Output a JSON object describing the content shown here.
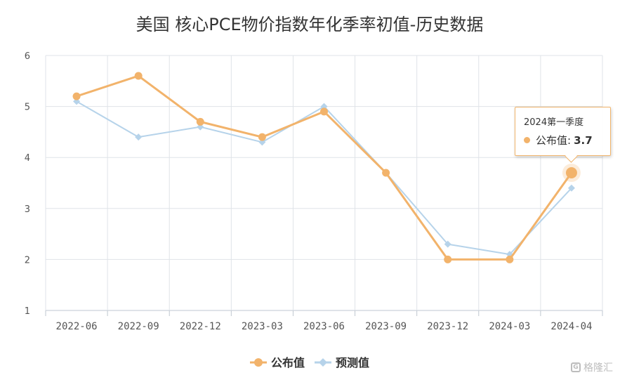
{
  "chart_data": {
    "type": "line",
    "title": "美国 核心PCE物价指数年化季率初值-历史数据",
    "categories": [
      "2022-06",
      "2022-09",
      "2022-12",
      "2023-03",
      "2023-06",
      "2023-09",
      "2023-12",
      "2024-03",
      "2024-04"
    ],
    "series": [
      {
        "name": "公布值",
        "color": "#f2b36b",
        "marker": "circle",
        "values": [
          5.2,
          5.6,
          4.7,
          4.4,
          4.9,
          3.7,
          2.0,
          2.0,
          3.7
        ]
      },
      {
        "name": "预测值",
        "color": "#b6d3ea",
        "marker": "diamond",
        "values": [
          5.1,
          4.4,
          4.6,
          4.3,
          5.0,
          3.7,
          2.3,
          2.1,
          3.4
        ]
      }
    ],
    "ylim": [
      1,
      6
    ],
    "yticks": [
      1,
      2,
      3,
      4,
      5,
      6
    ],
    "grid": true,
    "legend_position": "bottom-center",
    "tooltip": {
      "title": "2024第一季度",
      "series_label": "公布值:",
      "value": "3.7"
    }
  },
  "watermark": {
    "icon": "gelonghui-logo-icon",
    "text": "格隆汇"
  }
}
